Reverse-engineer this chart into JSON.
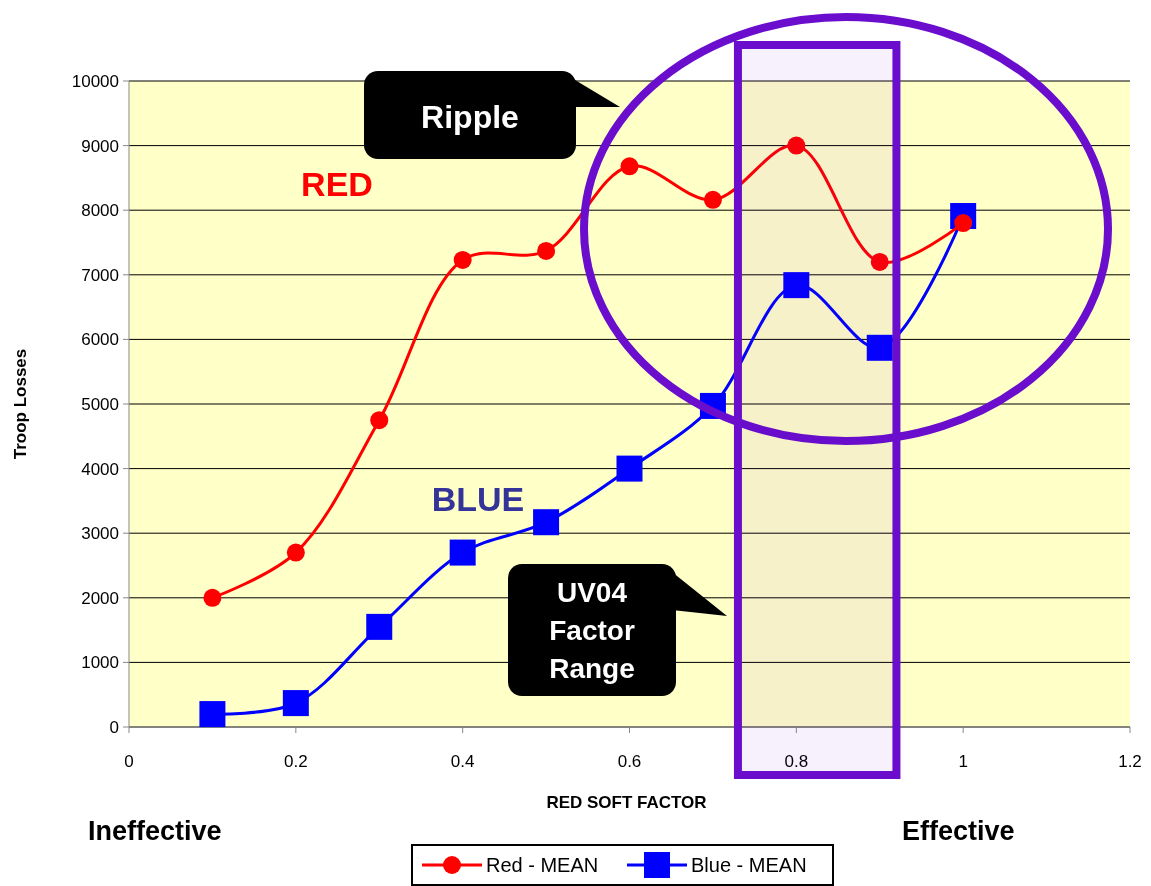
{
  "chart_data": {
    "type": "line",
    "xlabel": "RED SOFT FACTOR",
    "ylabel": "Troop Losses",
    "xlim": [
      0,
      1.2
    ],
    "xticks": [
      0,
      0.2,
      0.4,
      0.6,
      0.8,
      1,
      1.2
    ],
    "ylim": [
      0,
      10000
    ],
    "yticks": [
      0,
      1000,
      2000,
      3000,
      4000,
      5000,
      6000,
      7000,
      8000,
      9000,
      10000
    ],
    "grid": "y",
    "legend": "bottom",
    "series": [
      {
        "name": "Red - MEAN",
        "color": "#ff0000",
        "marker": "circle",
        "x": [
          0.1,
          0.2,
          0.3,
          0.4,
          0.5,
          0.6,
          0.7,
          0.8,
          0.9,
          1
        ],
        "values": [
          2000,
          2700,
          4750,
          7230,
          7370,
          8680,
          8160,
          9000,
          7200,
          7800
        ]
      },
      {
        "name": "Blue - MEAN",
        "color": "#0000ff",
        "marker": "square",
        "x": [
          0.1,
          0.2,
          0.3,
          0.4,
          0.5,
          0.6,
          0.7,
          0.8,
          0.9,
          1
        ],
        "values": [
          200,
          370,
          1550,
          2700,
          3170,
          4000,
          4970,
          6840,
          5870,
          7910
        ]
      }
    ],
    "bands": [
      {
        "axis": "x",
        "from": 0.73,
        "to": 0.92,
        "color": "#6a0dcc"
      }
    ],
    "annotations": [
      "RED",
      "BLUE",
      "Ripple",
      "UV04 Factor Range",
      "Ineffective",
      "Effective"
    ]
  }
}
